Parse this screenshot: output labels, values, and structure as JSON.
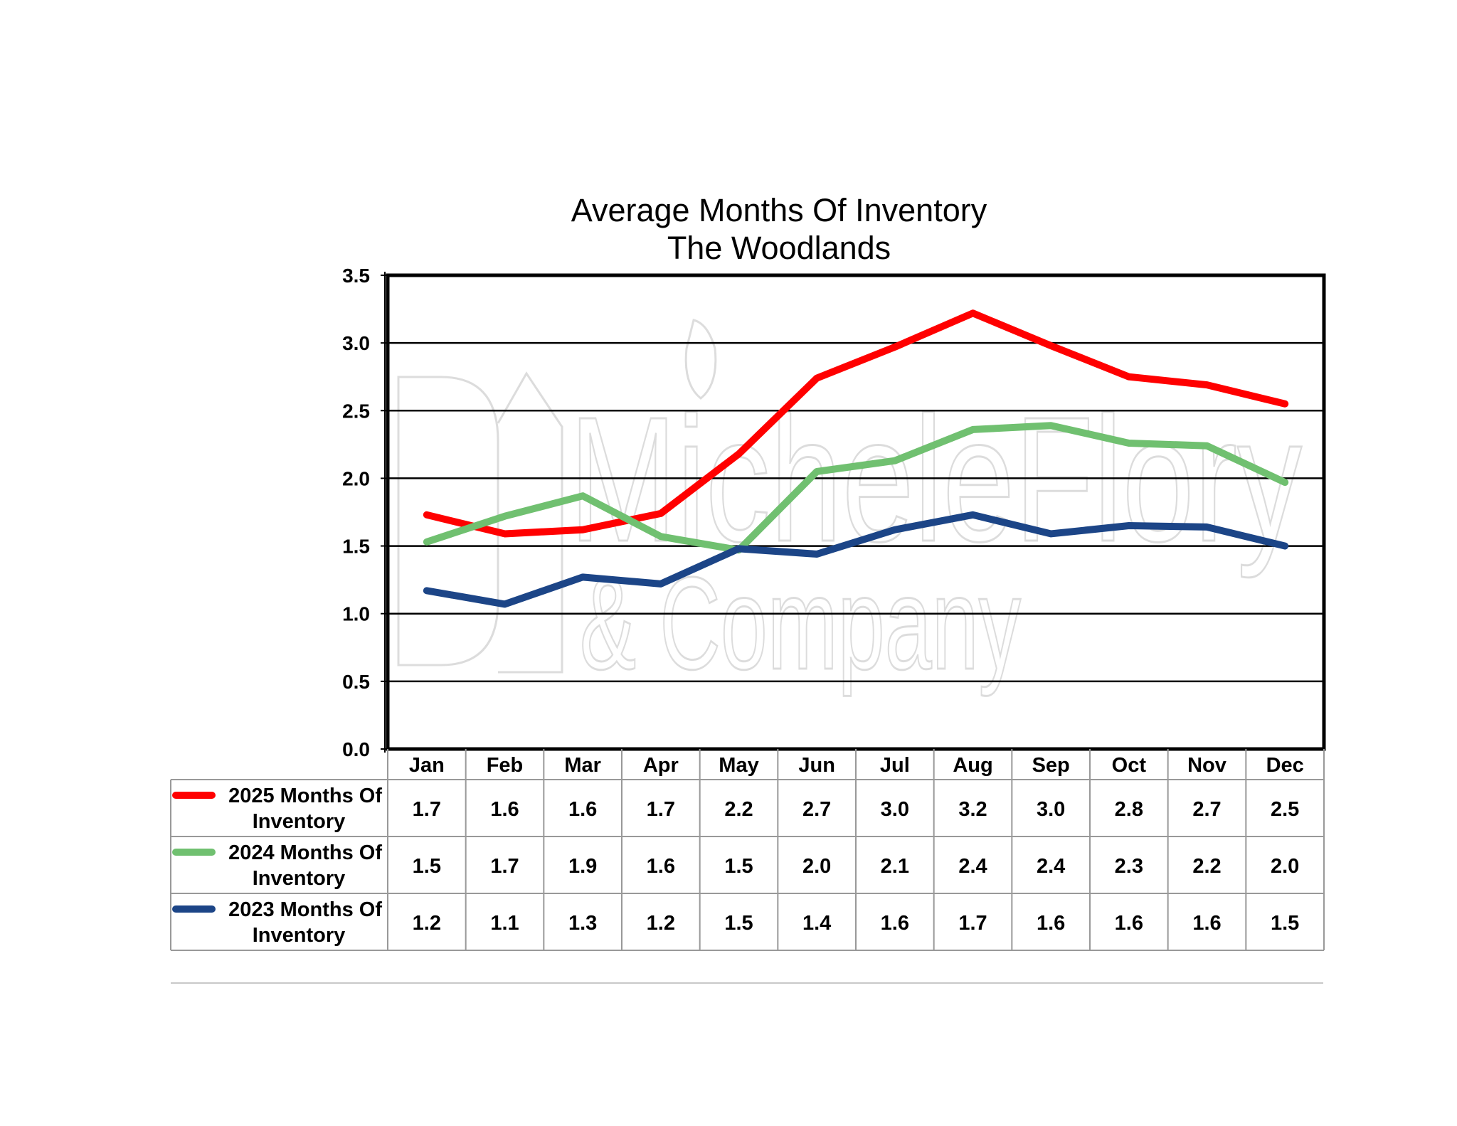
{
  "chart_data": {
    "type": "line",
    "title": "Average Months Of Inventory",
    "subtitle": "The Woodlands",
    "categories": [
      "Jan",
      "Feb",
      "Mar",
      "Apr",
      "May",
      "Jun",
      "Jul",
      "Aug",
      "Sep",
      "Oct",
      "Nov",
      "Dec"
    ],
    "ylim": [
      0,
      3.5
    ],
    "yticks": [
      "0.0",
      "0.5",
      "1.0",
      "1.5",
      "2.0",
      "2.5",
      "3.0",
      "3.5"
    ],
    "grid": true,
    "legend": "data table below chart",
    "series": [
      {
        "name_line1": "2025 Months Of",
        "name_line2": "Inventory",
        "color": "#ff0000",
        "values": [
          1.73,
          1.59,
          1.62,
          1.74,
          2.18,
          2.74,
          2.97,
          3.22,
          2.98,
          2.75,
          2.69,
          2.55
        ],
        "labels": [
          "1.7",
          "1.6",
          "1.6",
          "1.7",
          "2.2",
          "2.7",
          "3.0",
          "3.2",
          "3.0",
          "2.8",
          "2.7",
          "2.5"
        ]
      },
      {
        "name_line1": "2024 Months Of",
        "name_line2": "Inventory",
        "color": "#70c070",
        "values": [
          1.53,
          1.72,
          1.87,
          1.57,
          1.47,
          2.05,
          2.13,
          2.36,
          2.39,
          2.26,
          2.24,
          1.97
        ],
        "labels": [
          "1.5",
          "1.7",
          "1.9",
          "1.6",
          "1.5",
          "2.0",
          "2.1",
          "2.4",
          "2.4",
          "2.3",
          "2.2",
          "2.0"
        ]
      },
      {
        "name_line1": "2023 Months Of",
        "name_line2": "Inventory",
        "color": "#1c4587",
        "values": [
          1.17,
          1.07,
          1.27,
          1.22,
          1.48,
          1.44,
          1.62,
          1.73,
          1.59,
          1.65,
          1.64,
          1.5
        ],
        "labels": [
          "1.2",
          "1.1",
          "1.3",
          "1.2",
          "1.5",
          "1.4",
          "1.6",
          "1.7",
          "1.6",
          "1.6",
          "1.6",
          "1.5"
        ]
      }
    ]
  },
  "watermark": {
    "line1": "MicheleFlory",
    "line2": "& Company"
  }
}
